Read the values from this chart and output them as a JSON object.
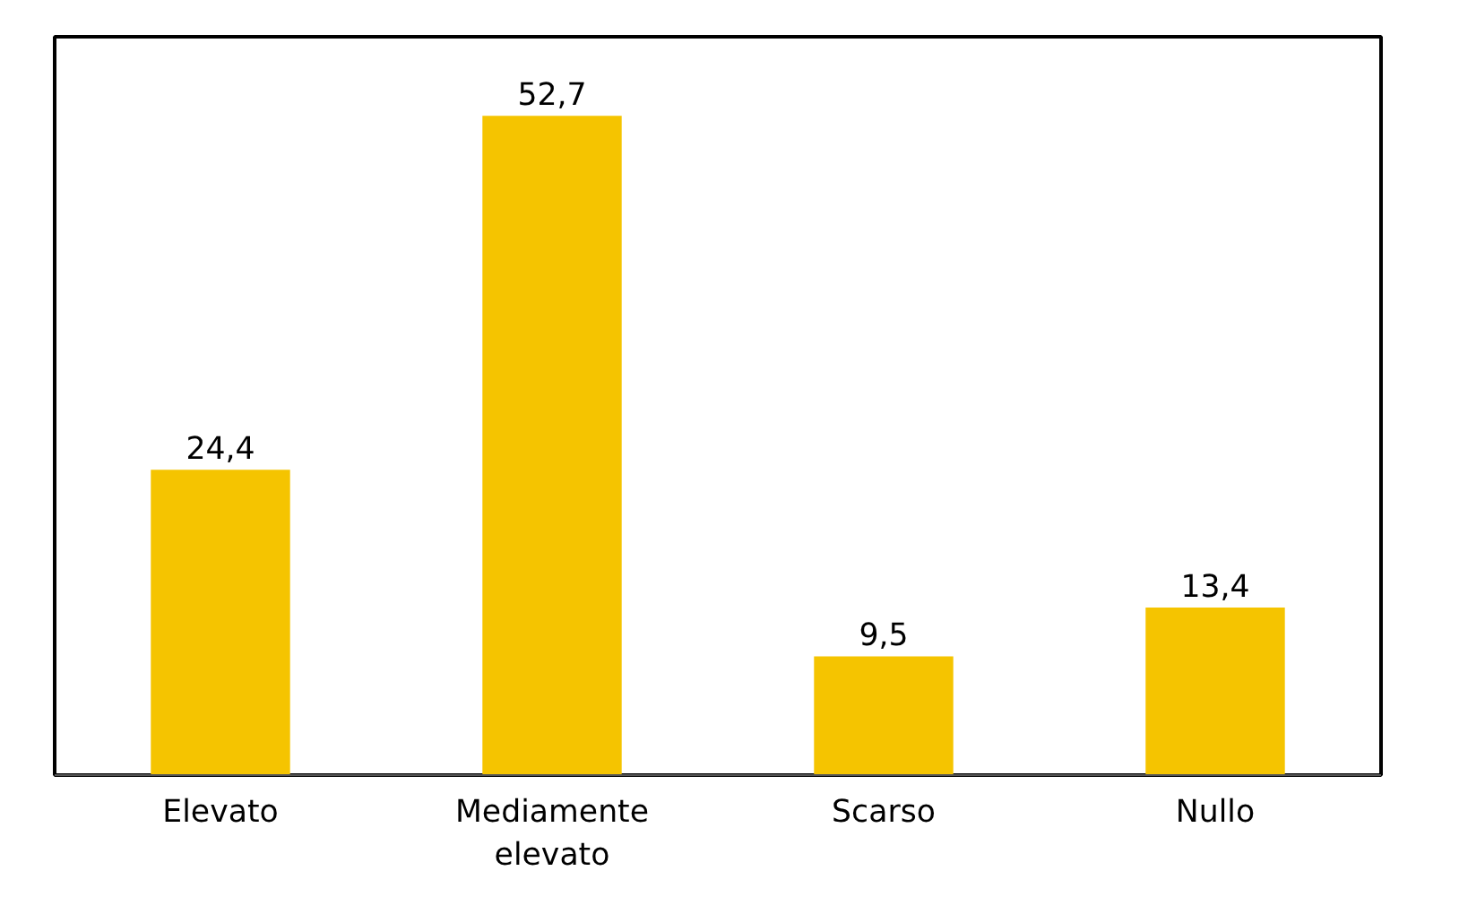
{
  "chart_data": {
    "type": "bar",
    "categories": [
      "Elevato",
      "Mediamente\nelevato",
      "Scarso",
      "Nullo"
    ],
    "values": [
      24.4,
      52.7,
      9.5,
      13.4
    ],
    "value_labels": [
      "24,4",
      "52,7",
      "9,5",
      "13,4"
    ],
    "color": "#f5c400"
  }
}
